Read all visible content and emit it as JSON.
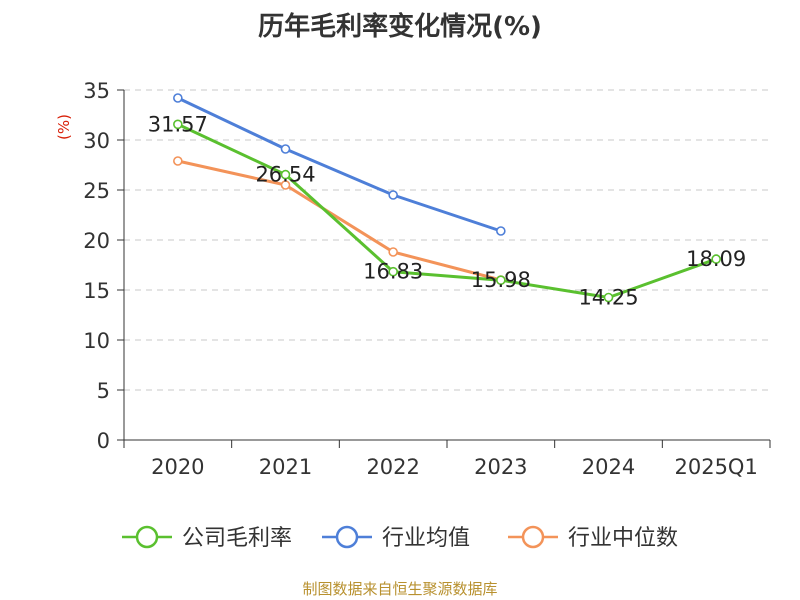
{
  "chart_data": {
    "type": "line",
    "title": "历年毛利率变化情况(%)",
    "ylabel": "(%)",
    "xlabel": "",
    "categories": [
      "2020",
      "2021",
      "2022",
      "2023",
      "2024",
      "2025Q1"
    ],
    "ylim": [
      0,
      35
    ],
    "yticks": [
      "0",
      "5",
      "10",
      "15",
      "20",
      "25",
      "30",
      "35"
    ],
    "grid": "horizontal dashed",
    "legend_position": "bottom",
    "series": [
      {
        "name": "公司毛利率",
        "color": "#5ac02f",
        "values": [
          31.57,
          26.54,
          16.83,
          15.98,
          14.25,
          18.09
        ],
        "labels": [
          "31.57",
          "26.54",
          "16.83",
          "15.98",
          "14.25",
          "18.09"
        ]
      },
      {
        "name": "行业均值",
        "color": "#4e7fd8",
        "values": [
          34.2,
          29.1,
          24.5,
          20.9,
          null,
          null
        ]
      },
      {
        "name": "行业中位数",
        "color": "#f39359",
        "values": [
          27.9,
          25.5,
          18.8,
          16.0,
          null,
          null
        ]
      }
    ]
  },
  "footer": {
    "source": "制图数据来自恒生聚源数据库"
  }
}
